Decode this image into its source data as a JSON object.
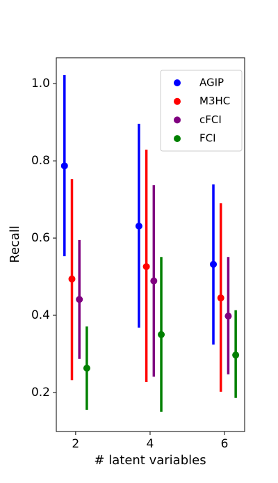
{
  "chart_data": {
    "type": "errorbar",
    "xlabel": "# latent variables",
    "ylabel": "Recall",
    "xlim": [
      1.48,
      6.54
    ],
    "ylim": [
      0.099,
      1.067
    ],
    "xticks": [
      2,
      4,
      6
    ],
    "yticks": [
      {
        "value": 0.2,
        "label": "0.2"
      },
      {
        "value": 0.4,
        "label": "0.4"
      },
      {
        "value": 0.6,
        "label": "0.6"
      },
      {
        "value": 0.8,
        "label": "0.8"
      },
      {
        "value": 1.0,
        "label": "1.0"
      }
    ],
    "legend": "upper right",
    "series": [
      {
        "name": "AGIP",
        "color": "#0000ff",
        "x": [
          1.7,
          3.7,
          5.7
        ],
        "values": [
          0.787,
          0.631,
          0.532
        ],
        "lower": [
          0.553,
          0.368,
          0.324
        ],
        "upper": [
          1.022,
          0.896,
          0.739
        ]
      },
      {
        "name": "M3HC",
        "color": "#ff0000",
        "x": [
          1.9,
          3.9,
          5.9
        ],
        "values": [
          0.494,
          0.526,
          0.445
        ],
        "lower": [
          0.232,
          0.227,
          0.202
        ],
        "upper": [
          0.753,
          0.829,
          0.69
        ]
      },
      {
        "name": "cFCI",
        "color": "#800080",
        "x": [
          2.1,
          4.1,
          6.1
        ],
        "values": [
          0.441,
          0.489,
          0.398
        ],
        "lower": [
          0.287,
          0.241,
          0.247
        ],
        "upper": [
          0.595,
          0.737,
          0.551
        ]
      },
      {
        "name": "FCI",
        "color": "#008000",
        "x": [
          2.3,
          4.3,
          6.3
        ],
        "values": [
          0.263,
          0.35,
          0.297
        ],
        "lower": [
          0.155,
          0.15,
          0.186
        ],
        "upper": [
          0.371,
          0.551,
          0.413
        ]
      }
    ]
  }
}
